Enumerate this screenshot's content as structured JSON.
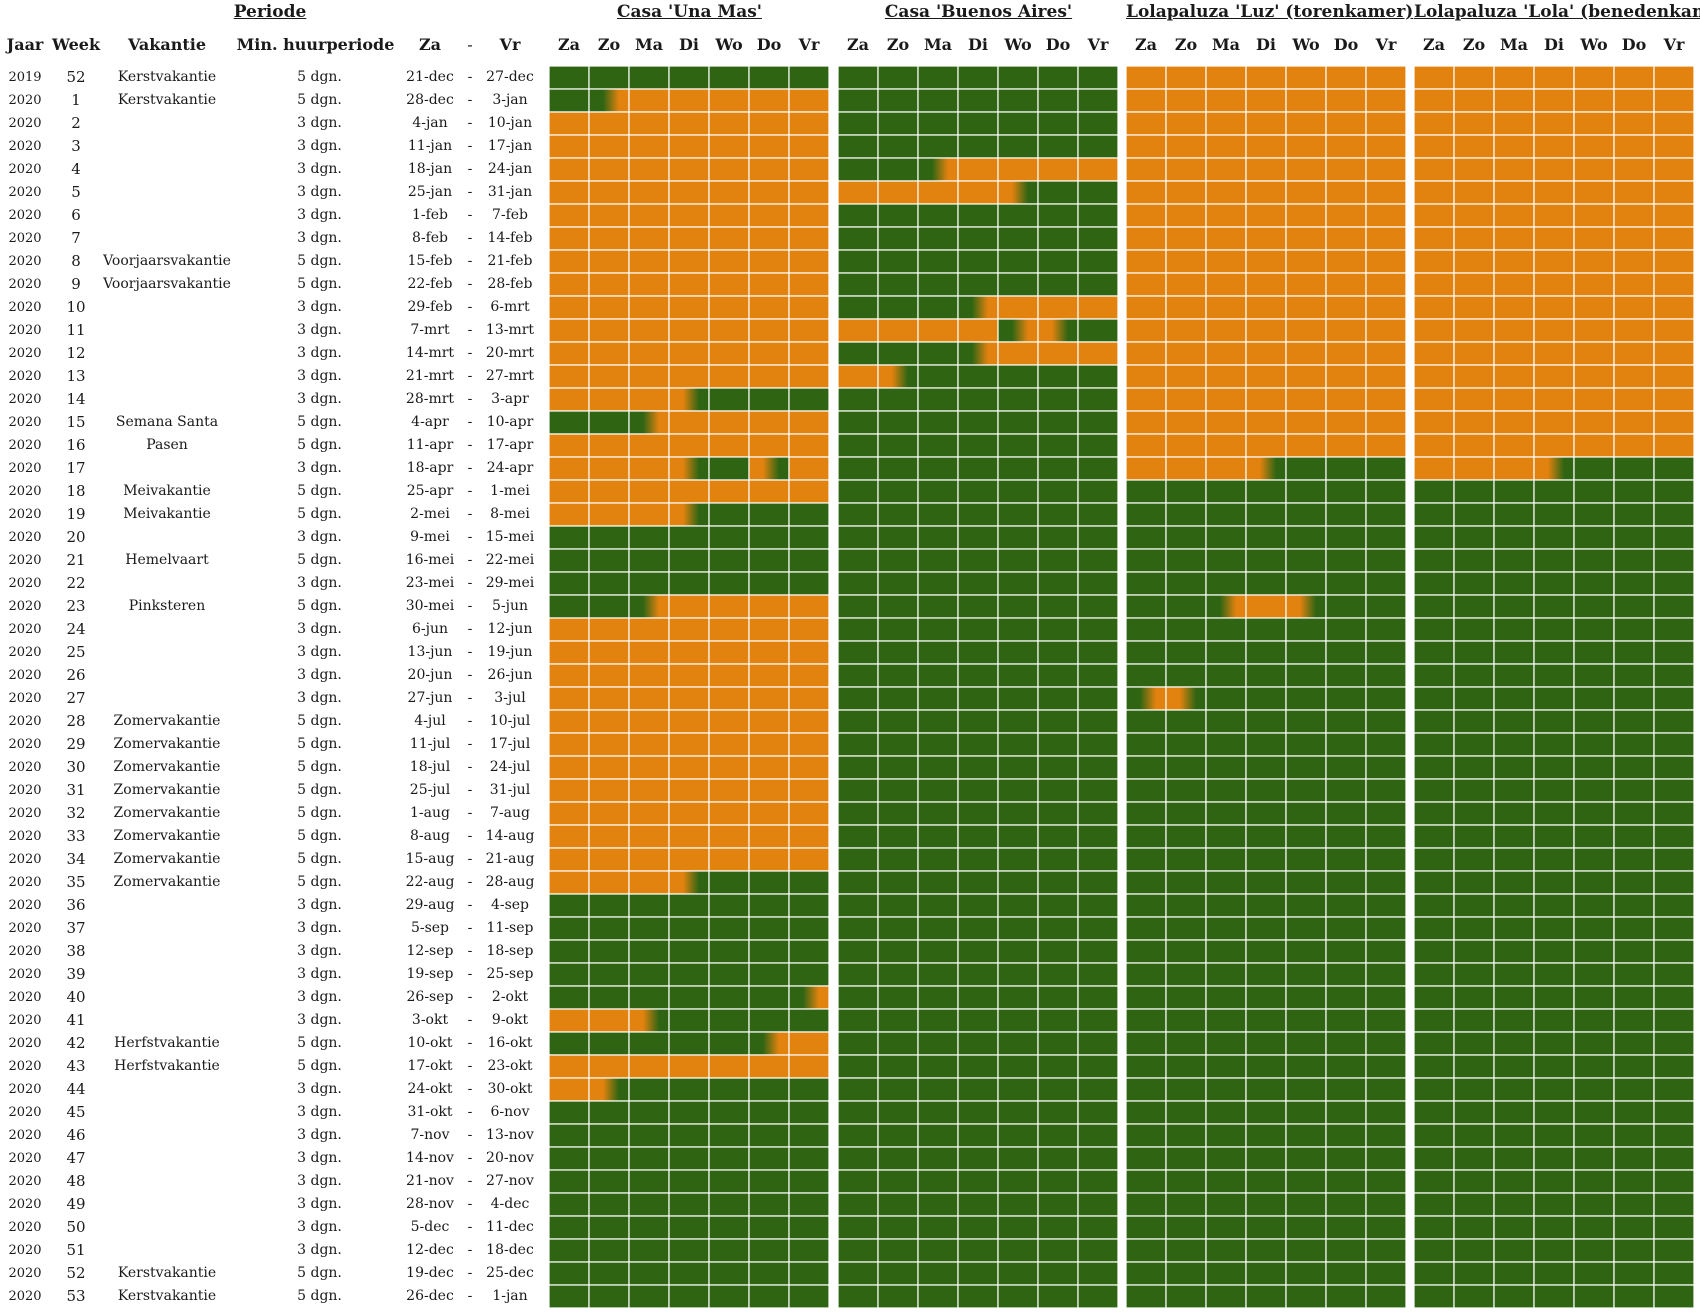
{
  "header": {
    "periode": "Periode",
    "houses": [
      "Casa 'Una Mas'",
      "Casa 'Buenos Aires'",
      "Lolapaluza 'Luz' (torenkamer)",
      "Lolapaluza 'Lola' (benedenkamer)"
    ]
  },
  "columns": {
    "jaar": "Jaar",
    "week": "Week",
    "vakantie": "Vakantie",
    "min": "Min. huurperiode",
    "za": "Za",
    "dash": "-",
    "vr": "Vr",
    "days": [
      "Za",
      "Zo",
      "Ma",
      "Di",
      "Wo",
      "Do",
      "Vr"
    ]
  },
  "colors": {
    "available": "#2f6512",
    "booked": "#e2820f",
    "gridline": "#ffffff"
  },
  "rows": [
    {
      "year": "2019",
      "week": "52",
      "vakantie": "Kerstvakantie",
      "min": "5 dgn.",
      "za": "21-dec",
      "vr": "27-dec"
    },
    {
      "year": "2020",
      "week": "1",
      "vakantie": "Kerstvakantie",
      "min": "5 dgn.",
      "za": "28-dec",
      "vr": "3-jan"
    },
    {
      "year": "2020",
      "week": "2",
      "vakantie": "",
      "min": "3 dgn.",
      "za": "4-jan",
      "vr": "10-jan"
    },
    {
      "year": "2020",
      "week": "3",
      "vakantie": "",
      "min": "3 dgn.",
      "za": "11-jan",
      "vr": "17-jan"
    },
    {
      "year": "2020",
      "week": "4",
      "vakantie": "",
      "min": "3 dgn.",
      "za": "18-jan",
      "vr": "24-jan"
    },
    {
      "year": "2020",
      "week": "5",
      "vakantie": "",
      "min": "3 dgn.",
      "za": "25-jan",
      "vr": "31-jan"
    },
    {
      "year": "2020",
      "week": "6",
      "vakantie": "",
      "min": "3 dgn.",
      "za": "1-feb",
      "vr": "7-feb"
    },
    {
      "year": "2020",
      "week": "7",
      "vakantie": "",
      "min": "3 dgn.",
      "za": "8-feb",
      "vr": "14-feb"
    },
    {
      "year": "2020",
      "week": "8",
      "vakantie": "Voorjaarsvakantie",
      "min": "5 dgn.",
      "za": "15-feb",
      "vr": "21-feb"
    },
    {
      "year": "2020",
      "week": "9",
      "vakantie": "Voorjaarsvakantie",
      "min": "5 dgn.",
      "za": "22-feb",
      "vr": "28-feb"
    },
    {
      "year": "2020",
      "week": "10",
      "vakantie": "",
      "min": "3 dgn.",
      "za": "29-feb",
      "vr": "6-mrt"
    },
    {
      "year": "2020",
      "week": "11",
      "vakantie": "",
      "min": "3 dgn.",
      "za": "7-mrt",
      "vr": "13-mrt"
    },
    {
      "year": "2020",
      "week": "12",
      "vakantie": "",
      "min": "3 dgn.",
      "za": "14-mrt",
      "vr": "20-mrt"
    },
    {
      "year": "2020",
      "week": "13",
      "vakantie": "",
      "min": "3 dgn.",
      "za": "21-mrt",
      "vr": "27-mrt"
    },
    {
      "year": "2020",
      "week": "14",
      "vakantie": "",
      "min": "3 dgn.",
      "za": "28-mrt",
      "vr": "3-apr"
    },
    {
      "year": "2020",
      "week": "15",
      "vakantie": "Semana Santa",
      "min": "5 dgn.",
      "za": "4-apr",
      "vr": "10-apr"
    },
    {
      "year": "2020",
      "week": "16",
      "vakantie": "Pasen",
      "min": "5 dgn.",
      "za": "11-apr",
      "vr": "17-apr"
    },
    {
      "year": "2020",
      "week": "17",
      "vakantie": "",
      "min": "3 dgn.",
      "za": "18-apr",
      "vr": "24-apr"
    },
    {
      "year": "2020",
      "week": "18",
      "vakantie": "Meivakantie",
      "min": "5 dgn.",
      "za": "25-apr",
      "vr": "1-mei"
    },
    {
      "year": "2020",
      "week": "19",
      "vakantie": "Meivakantie",
      "min": "5 dgn.",
      "za": "2-mei",
      "vr": "8-mei"
    },
    {
      "year": "2020",
      "week": "20",
      "vakantie": "",
      "min": "3 dgn.",
      "za": "9-mei",
      "vr": "15-mei"
    },
    {
      "year": "2020",
      "week": "21",
      "vakantie": "Hemelvaart",
      "min": "5 dgn.",
      "za": "16-mei",
      "vr": "22-mei"
    },
    {
      "year": "2020",
      "week": "22",
      "vakantie": "",
      "min": "3 dgn.",
      "za": "23-mei",
      "vr": "29-mei"
    },
    {
      "year": "2020",
      "week": "23",
      "vakantie": "Pinksteren",
      "min": "5 dgn.",
      "za": "30-mei",
      "vr": "5-jun"
    },
    {
      "year": "2020",
      "week": "24",
      "vakantie": "",
      "min": "3 dgn.",
      "za": "6-jun",
      "vr": "12-jun"
    },
    {
      "year": "2020",
      "week": "25",
      "vakantie": "",
      "min": "3 dgn.",
      "za": "13-jun",
      "vr": "19-jun"
    },
    {
      "year": "2020",
      "week": "26",
      "vakantie": "",
      "min": "3 dgn.",
      "za": "20-jun",
      "vr": "26-jun"
    },
    {
      "year": "2020",
      "week": "27",
      "vakantie": "",
      "min": "3 dgn.",
      "za": "27-jun",
      "vr": "3-jul"
    },
    {
      "year": "2020",
      "week": "28",
      "vakantie": "Zomervakantie",
      "min": "5 dgn.",
      "za": "4-jul",
      "vr": "10-jul"
    },
    {
      "year": "2020",
      "week": "29",
      "vakantie": "Zomervakantie",
      "min": "5 dgn.",
      "za": "11-jul",
      "vr": "17-jul"
    },
    {
      "year": "2020",
      "week": "30",
      "vakantie": "Zomervakantie",
      "min": "5 dgn.",
      "za": "18-jul",
      "vr": "24-jul"
    },
    {
      "year": "2020",
      "week": "31",
      "vakantie": "Zomervakantie",
      "min": "5 dgn.",
      "za": "25-jul",
      "vr": "31-jul"
    },
    {
      "year": "2020",
      "week": "32",
      "vakantie": "Zomervakantie",
      "min": "5 dgn.",
      "za": "1-aug",
      "vr": "7-aug"
    },
    {
      "year": "2020",
      "week": "33",
      "vakantie": "Zomervakantie",
      "min": "5 dgn.",
      "za": "8-aug",
      "vr": "14-aug"
    },
    {
      "year": "2020",
      "week": "34",
      "vakantie": "Zomervakantie",
      "min": "5 dgn.",
      "za": "15-aug",
      "vr": "21-aug"
    },
    {
      "year": "2020",
      "week": "35",
      "vakantie": "Zomervakantie",
      "min": "5 dgn.",
      "za": "22-aug",
      "vr": "28-aug"
    },
    {
      "year": "2020",
      "week": "36",
      "vakantie": "",
      "min": "3 dgn.",
      "za": "29-aug",
      "vr": "4-sep"
    },
    {
      "year": "2020",
      "week": "37",
      "vakantie": "",
      "min": "3 dgn.",
      "za": "5-sep",
      "vr": "11-sep"
    },
    {
      "year": "2020",
      "week": "38",
      "vakantie": "",
      "min": "3 dgn.",
      "za": "12-sep",
      "vr": "18-sep"
    },
    {
      "year": "2020",
      "week": "39",
      "vakantie": "",
      "min": "3 dgn.",
      "za": "19-sep",
      "vr": "25-sep"
    },
    {
      "year": "2020",
      "week": "40",
      "vakantie": "",
      "min": "3 dgn.",
      "za": "26-sep",
      "vr": "2-okt"
    },
    {
      "year": "2020",
      "week": "41",
      "vakantie": "",
      "min": "3 dgn.",
      "za": "3-okt",
      "vr": "9-okt"
    },
    {
      "year": "2020",
      "week": "42",
      "vakantie": "Herfstvakantie",
      "min": "5 dgn.",
      "za": "10-okt",
      "vr": "16-okt"
    },
    {
      "year": "2020",
      "week": "43",
      "vakantie": "Herfstvakantie",
      "min": "5 dgn.",
      "za": "17-okt",
      "vr": "23-okt"
    },
    {
      "year": "2020",
      "week": "44",
      "vakantie": "",
      "min": "3 dgn.",
      "za": "24-okt",
      "vr": "30-okt"
    },
    {
      "year": "2020",
      "week": "45",
      "vakantie": "",
      "min": "3 dgn.",
      "za": "31-okt",
      "vr": "6-nov"
    },
    {
      "year": "2020",
      "week": "46",
      "vakantie": "",
      "min": "3 dgn.",
      "za": "7-nov",
      "vr": "13-nov"
    },
    {
      "year": "2020",
      "week": "47",
      "vakantie": "",
      "min": "3 dgn.",
      "za": "14-nov",
      "vr": "20-nov"
    },
    {
      "year": "2020",
      "week": "48",
      "vakantie": "",
      "min": "3 dgn.",
      "za": "21-nov",
      "vr": "27-nov"
    },
    {
      "year": "2020",
      "week": "49",
      "vakantie": "",
      "min": "3 dgn.",
      "za": "28-nov",
      "vr": "4-dec"
    },
    {
      "year": "2020",
      "week": "50",
      "vakantie": "",
      "min": "3 dgn.",
      "za": "5-dec",
      "vr": "11-dec"
    },
    {
      "year": "2020",
      "week": "51",
      "vakantie": "",
      "min": "3 dgn.",
      "za": "12-dec",
      "vr": "18-dec"
    },
    {
      "year": "2020",
      "week": "52",
      "vakantie": "Kerstvakantie",
      "min": "5 dgn.",
      "za": "19-dec",
      "vr": "25-dec"
    },
    {
      "year": "2020",
      "week": "53",
      "vakantie": "Kerstvakantie",
      "min": "5 dgn.",
      "za": "26-dec",
      "vr": "1-jan"
    }
  ],
  "availability": {
    "legend": "G = available (green), B = booked (orange), g = green→orange, b = orange→green (changeover day)",
    "houses": [
      [
        "GGGGGGG",
        "GgBBBBB",
        "BBBBBBB",
        "BBBBBBB",
        "BBBBBBB",
        "BBBBBBB",
        "BBBBBBB",
        "BBBBBBB",
        "BBBBBBB",
        "BBBBBBB",
        "BBBBBBB",
        "BBBBBBB",
        "BBBBBBB",
        "BBBBBBB",
        "BBBbGGG",
        "GGgBBBB",
        "BBBBBBB",
        "BBBbGbB",
        "BBBBBBB",
        "BBBbGGG",
        "GGGGGGG",
        "GGGGGGG",
        "GGGGGGG",
        "GGgBBBB",
        "BBBBBBB",
        "BBBBBBB",
        "BBBBBBB",
        "BBBBBBB",
        "BBBBBBB",
        "BBBBBBB",
        "BBBBBBB",
        "BBBBBBB",
        "BBBBBBB",
        "BBBBBBB",
        "BBBBBBB",
        "BBBbGGG",
        "GGGGGGG",
        "GGGGGGG",
        "GGGGGGG",
        "GGGGGGG",
        "GGGGGGg",
        "BBbGGGG",
        "GGGGGgB",
        "BBBBBBB",
        "BbGGGGG",
        "GGGGGGG",
        "GGGGGGG",
        "GGGGGGG",
        "GGGGGGG",
        "GGGGGGG",
        "GGGGGGG",
        "GGGGGGG",
        "GGGGGGG",
        "GGGGGGG"
      ],
      [
        "GGGGGGG",
        "GGGGGGG",
        "GGGGGGG",
        "GGGGGGG",
        "GGgBBBB",
        "BBBBbGG",
        "GGGGGGG",
        "GGGGGGG",
        "GGGGGGG",
        "GGGGGGG",
        "GGGgBBB",
        "BBBBgbG",
        "GGGgBBB",
        "BbGGGGG",
        "GGGGGGG",
        "GGGGGGG",
        "GGGGGGG",
        "GGGGGGG",
        "GGGGGGG",
        "GGGGGGG",
        "GGGGGGG",
        "GGGGGGG",
        "GGGGGGG",
        "GGGGGGG",
        "GGGGGGG",
        "GGGGGGG",
        "GGGGGGG",
        "GGGGGGG",
        "GGGGGGG",
        "GGGGGGG",
        "GGGGGGG",
        "GGGGGGG",
        "GGGGGGG",
        "GGGGGGG",
        "GGGGGGG",
        "GGGGGGG",
        "GGGGGGG",
        "GGGGGGG",
        "GGGGGGG",
        "GGGGGGG",
        "GGGGGGG",
        "GGGGGGG",
        "GGGGGGG",
        "GGGGGGG",
        "GGGGGGG",
        "GGGGGGG",
        "GGGGGGG",
        "GGGGGGG",
        "GGGGGGG",
        "GGGGGGG",
        "GGGGGGG",
        "GGGGGGG",
        "GGGGGGG",
        "GGGGGGG"
      ],
      [
        "BBBBBBB",
        "BBBBBBB",
        "BBBBBBB",
        "BBBBBBB",
        "BBBBBBB",
        "BBBBBBB",
        "BBBBBBB",
        "BBBBBBB",
        "BBBBBBB",
        "BBBBBBB",
        "BBBBBBB",
        "BBBBBBB",
        "BBBBBBB",
        "BBBBBBB",
        "BBBBBBB",
        "BBBBBBB",
        "BBBBBBB",
        "BBBbGGG",
        "GGGGGGG",
        "GGGGGGG",
        "GGGGGGG",
        "GGGGGGG",
        "GGGGGGG",
        "GGgBbGG",
        "GGGGGGG",
        "GGGGGGG",
        "GGGGGGG",
        "gbGGGGG",
        "GGGGGGG",
        "GGGGGGG",
        "GGGGGGG",
        "GGGGGGG",
        "GGGGGGG",
        "GGGGGGG",
        "GGGGGGG",
        "GGGGGGG",
        "GGGGGGG",
        "GGGGGGG",
        "GGGGGGG",
        "GGGGGGG",
        "GGGGGGG",
        "GGGGGGG",
        "GGGGGGG",
        "GGGGGGG",
        "GGGGGGG",
        "GGGGGGG",
        "GGGGGGG",
        "GGGGGGG",
        "GGGGGGG",
        "GGGGGGG",
        "GGGGGGG",
        "GGGGGGG",
        "GGGGGGG",
        "GGGGGGG"
      ],
      [
        "BBBBBBB",
        "BBBBBBB",
        "BBBBBBB",
        "BBBBBBB",
        "BBBBBBB",
        "BBBBBBB",
        "BBBBBBB",
        "BBBBBBB",
        "BBBBBBB",
        "BBBBBBB",
        "BBBBBBB",
        "BBBBBBB",
        "BBBBBBB",
        "BBBBBBB",
        "BBBBBBB",
        "BBBBBBB",
        "BBBBBBB",
        "BBBbGGG",
        "GGGGGGG",
        "GGGGGGG",
        "GGGGGGG",
        "GGGGGGG",
        "GGGGGGG",
        "GGGGGGG",
        "GGGGGGG",
        "GGGGGGG",
        "GGGGGGG",
        "GGGGGGG",
        "GGGGGGG",
        "GGGGGGG",
        "GGGGGGG",
        "GGGGGGG",
        "GGGGGGG",
        "GGGGGGG",
        "GGGGGGG",
        "GGGGGGG",
        "GGGGGGG",
        "GGGGGGG",
        "GGGGGGG",
        "GGGGGGG",
        "GGGGGGG",
        "GGGGGGG",
        "GGGGGGG",
        "GGGGGGG",
        "GGGGGGG",
        "GGGGGGG",
        "GGGGGGG",
        "GGGGGGG",
        "GGGGGGG",
        "GGGGGGG",
        "GGGGGGG",
        "GGGGGGG",
        "GGGGGGG",
        "GGGGGGG"
      ]
    ]
  }
}
